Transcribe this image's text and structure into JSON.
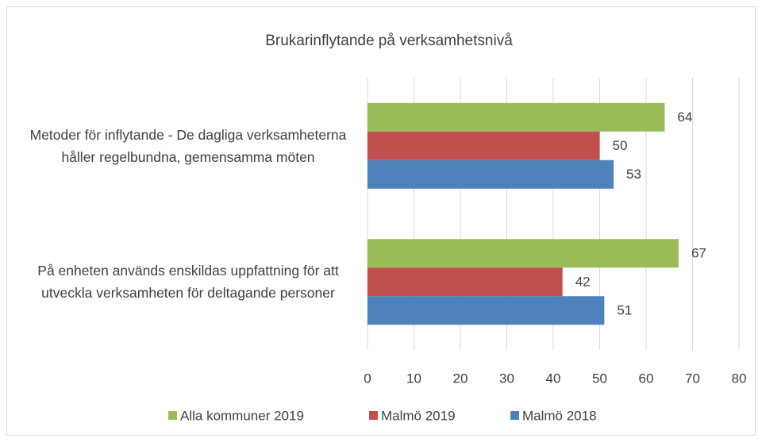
{
  "chart_data": {
    "type": "barh",
    "title": "Brukarinflytande på verksamhetsnivå",
    "categories": [
      "Metoder för inflytande - De dagliga verksamheterna håller regelbundna, gemensamma möten",
      "På enheten används enskildas uppfattning för att utveckla verksamheten för deltagande personer"
    ],
    "series": [
      {
        "name": "Alla kommuner 2019",
        "color": "#9bbb59",
        "values": [
          64,
          67
        ]
      },
      {
        "name": "Malmö 2019",
        "color": "#c0504d",
        "values": [
          50,
          42
        ]
      },
      {
        "name": "Malmö 2018",
        "color": "#4f81bd",
        "values": [
          53,
          51
        ]
      }
    ],
    "xlim": [
      0,
      80
    ],
    "xticks": [
      0,
      10,
      20,
      30,
      40,
      50,
      60,
      70,
      80
    ],
    "grid": true,
    "legend": "bottom"
  }
}
